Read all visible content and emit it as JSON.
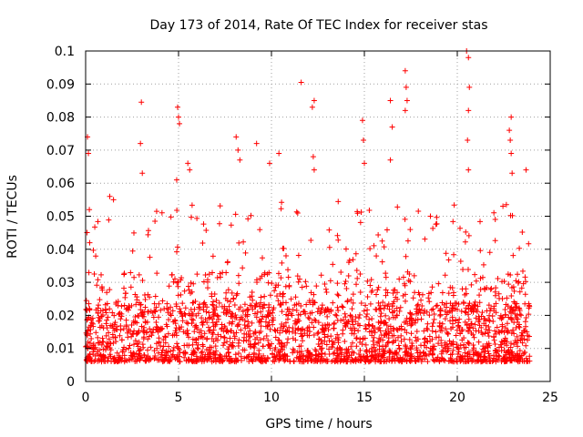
{
  "chart_data": {
    "type": "scatter",
    "title": "Day 173 of 2014, Rate Of TEC Index for receiver stas",
    "xlabel": "GPS time / hours",
    "ylabel": "ROTI / TECUs",
    "xlim": [
      0,
      25
    ],
    "ylim": [
      0,
      0.1
    ],
    "x_ticks": [
      0,
      5,
      10,
      15,
      20,
      25
    ],
    "x_tick_labels": [
      "0",
      "5",
      "10",
      "15",
      "20",
      "25"
    ],
    "y_ticks": [
      0,
      0.01,
      0.02,
      0.03,
      0.04,
      0.05,
      0.06,
      0.07,
      0.08,
      0.09,
      0.1
    ],
    "y_tick_labels": [
      "0",
      "0.01",
      "0.02",
      "0.03",
      "0.04",
      "0.05",
      "0.06",
      "0.07",
      "0.08",
      "0.09",
      "0.1"
    ],
    "grid": true,
    "marker": "+",
    "color": "#ff0000",
    "x_data_range": [
      0,
      23.9
    ],
    "series": [
      {
        "name": "ROTI",
        "description_note": "Dense band of points roughly 0.005-0.025 TECU across all hours; scattered spikes listed in 'highlights'",
        "highlights": [
          {
            "x": 0.1,
            "y": 0.074
          },
          {
            "x": 0.15,
            "y": 0.069
          },
          {
            "x": 0.2,
            "y": 0.052
          },
          {
            "x": 1.3,
            "y": 0.056
          },
          {
            "x": 1.5,
            "y": 0.055
          },
          {
            "x": 3.0,
            "y": 0.0845
          },
          {
            "x": 2.95,
            "y": 0.072
          },
          {
            "x": 3.05,
            "y": 0.063
          },
          {
            "x": 4.95,
            "y": 0.083
          },
          {
            "x": 5.0,
            "y": 0.08
          },
          {
            "x": 5.05,
            "y": 0.078
          },
          {
            "x": 4.9,
            "y": 0.061
          },
          {
            "x": 5.5,
            "y": 0.066
          },
          {
            "x": 5.6,
            "y": 0.064
          },
          {
            "x": 8.1,
            "y": 0.074
          },
          {
            "x": 8.2,
            "y": 0.07
          },
          {
            "x": 8.3,
            "y": 0.067
          },
          {
            "x": 9.2,
            "y": 0.072
          },
          {
            "x": 9.9,
            "y": 0.066
          },
          {
            "x": 10.4,
            "y": 0.069
          },
          {
            "x": 11.6,
            "y": 0.0905
          },
          {
            "x": 12.3,
            "y": 0.085
          },
          {
            "x": 12.2,
            "y": 0.083
          },
          {
            "x": 12.25,
            "y": 0.068
          },
          {
            "x": 12.3,
            "y": 0.064
          },
          {
            "x": 14.9,
            "y": 0.079
          },
          {
            "x": 14.95,
            "y": 0.073
          },
          {
            "x": 15.0,
            "y": 0.066
          },
          {
            "x": 16.4,
            "y": 0.085
          },
          {
            "x": 16.5,
            "y": 0.077
          },
          {
            "x": 16.4,
            "y": 0.067
          },
          {
            "x": 17.2,
            "y": 0.094
          },
          {
            "x": 17.25,
            "y": 0.089
          },
          {
            "x": 17.3,
            "y": 0.085
          },
          {
            "x": 17.2,
            "y": 0.082
          },
          {
            "x": 20.5,
            "y": 0.1
          },
          {
            "x": 20.6,
            "y": 0.098
          },
          {
            "x": 20.65,
            "y": 0.089
          },
          {
            "x": 20.6,
            "y": 0.082
          },
          {
            "x": 20.55,
            "y": 0.073
          },
          {
            "x": 20.6,
            "y": 0.064
          },
          {
            "x": 22.9,
            "y": 0.08
          },
          {
            "x": 22.8,
            "y": 0.076
          },
          {
            "x": 22.85,
            "y": 0.073
          },
          {
            "x": 22.9,
            "y": 0.069
          },
          {
            "x": 22.95,
            "y": 0.063
          },
          {
            "x": 23.7,
            "y": 0.064
          }
        ]
      }
    ]
  }
}
